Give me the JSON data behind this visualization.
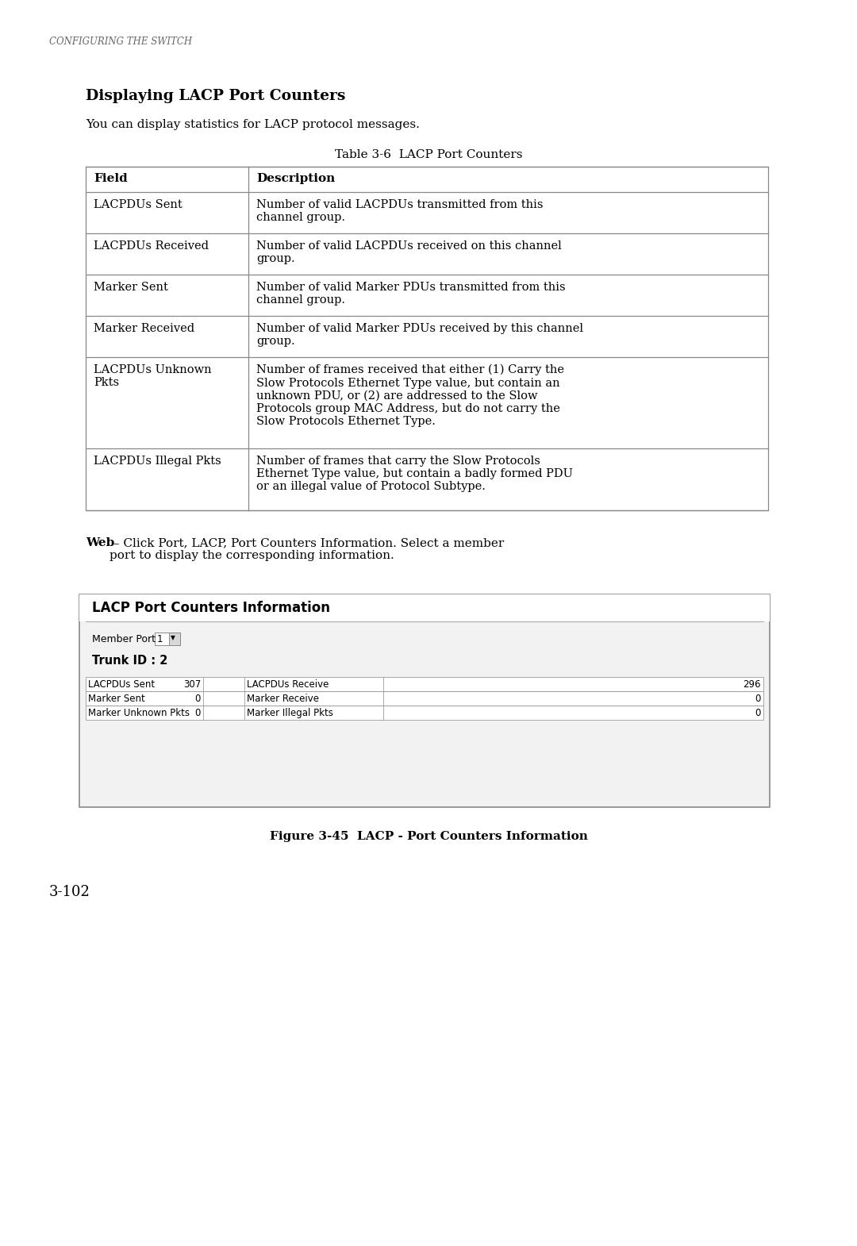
{
  "page_header": "CONFIGURING THE SWITCH",
  "section_title": "Displaying LACP Port Counters",
  "intro_text": "You can display statistics for LACP protocol messages.",
  "table_title": "Table 3-6  LACP Port Counters",
  "table_col1_header": "Field",
  "table_col2_header": "Description",
  "table_rows": [
    [
      "LACPDUs Sent",
      "Number of valid LACPDUs transmitted from this\nchannel group."
    ],
    [
      "LACPDUs Received",
      "Number of valid LACPDUs received on this channel\ngroup."
    ],
    [
      "Marker Sent",
      "Number of valid Marker PDUs transmitted from this\nchannel group."
    ],
    [
      "Marker Received",
      "Number of valid Marker PDUs received by this channel\ngroup."
    ],
    [
      "LACPDUs Unknown\nPkts",
      "Number of frames received that either (1) Carry the\nSlow Protocols Ethernet Type value, but contain an\nunknown PDU, or (2) are addressed to the Slow\nProtocols group MAC Address, but do not carry the\nSlow Protocols Ethernet Type."
    ],
    [
      "LACPDUs Illegal Pkts",
      "Number of frames that carry the Slow Protocols\nEthernet Type value, but contain a badly formed PDU\nor an illegal value of Protocol Subtype."
    ]
  ],
  "web_bold": "Web",
  "web_normal": " – Click Port, LACP, Port Counters Information. Select a member\nport to display the corresponding information.",
  "ui_title": "LACP Port Counters Information",
  "ui_member_label": "Member Port",
  "ui_member_value": "1",
  "ui_trunk": "Trunk ID : 2",
  "ui_rows": [
    [
      "LACPDUs Sent",
      "307",
      "LACPDUs Receive",
      "296"
    ],
    [
      "Marker Sent",
      "0",
      "Marker Receive",
      "0"
    ],
    [
      "Marker Unknown Pkts",
      "0",
      "Marker Illegal Pkts",
      "0"
    ]
  ],
  "figure_caption": "Figure 3-45  LACP - Port Counters Information",
  "page_number": "3-102",
  "bg": "#ffffff",
  "fg": "#000000",
  "gray": "#777777",
  "light_gray": "#cccccc",
  "ui_bg": "#f2f2f2"
}
